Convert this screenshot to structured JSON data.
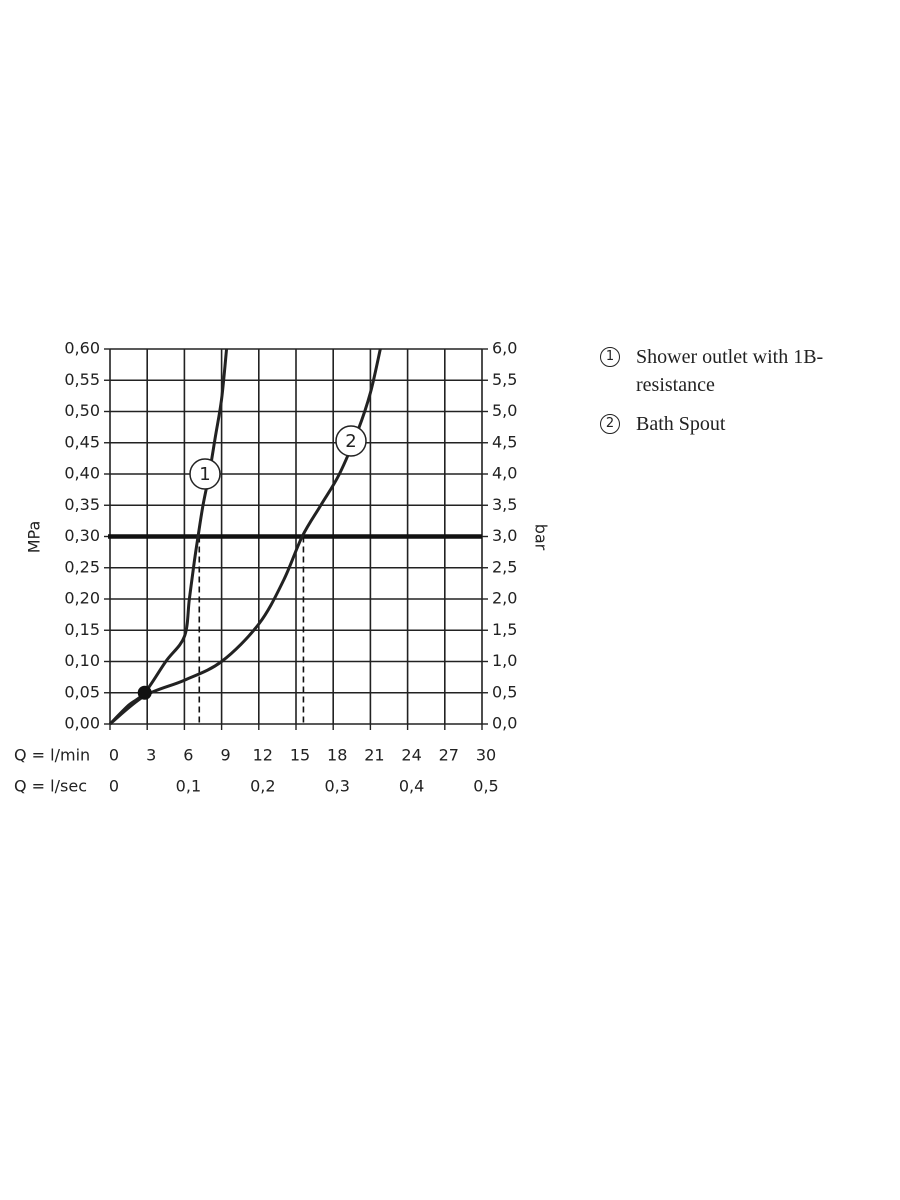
{
  "chart_data": {
    "type": "line",
    "ylabel": "MPa",
    "y2label": "bar",
    "xlabel": "Q = l/min",
    "x2label": "Q = l/sec",
    "xlim": [
      0,
      30
    ],
    "xticks": [
      0,
      3,
      6,
      9,
      12,
      15,
      18,
      21,
      24,
      27,
      30
    ],
    "x2lim": [
      0,
      0.5
    ],
    "x2ticks": [
      0,
      {
        "value": 0.1,
        "label": "0,1"
      },
      {
        "value": 0.2,
        "label": "0,2"
      },
      {
        "value": 0.3,
        "label": "0,3"
      },
      {
        "value": 0.4,
        "label": "0,4"
      },
      {
        "value": 0.5,
        "label": "0,5"
      }
    ],
    "ylim": [
      0,
      0.6
    ],
    "yticks": [
      {
        "value": 0,
        "label": "0,00"
      },
      {
        "value": 0.05,
        "label": "0,05"
      },
      {
        "value": 0.1,
        "label": "0,10"
      },
      {
        "value": 0.15,
        "label": "0,15"
      },
      {
        "value": 0.2,
        "label": "0,20"
      },
      {
        "value": 0.25,
        "label": "0,25"
      },
      {
        "value": 0.3,
        "label": "0,30"
      },
      {
        "value": 0.35,
        "label": "0,35"
      },
      {
        "value": 0.4,
        "label": "0,40"
      },
      {
        "value": 0.45,
        "label": "0,45"
      },
      {
        "value": 0.5,
        "label": "0,50"
      },
      {
        "value": 0.55,
        "label": "0,55"
      },
      {
        "value": 0.6,
        "label": "0,60"
      }
    ],
    "y2lim": [
      0,
      6
    ],
    "y2ticks": [
      {
        "value": 0,
        "label": "0,0"
      },
      {
        "value": 0.5,
        "label": "0,5"
      },
      {
        "value": 1,
        "label": "1,0"
      },
      {
        "value": 1.5,
        "label": "1,5"
      },
      {
        "value": 2,
        "label": "2,0"
      },
      {
        "value": 2.5,
        "label": "2,5"
      },
      {
        "value": 3,
        "label": "3,0"
      },
      {
        "value": 3.5,
        "label": "3,5"
      },
      {
        "value": 4,
        "label": "4,0"
      },
      {
        "value": 4.5,
        "label": "4,5"
      },
      {
        "value": 5,
        "label": "5,0"
      },
      {
        "value": 5.5,
        "label": "5,5"
      },
      {
        "value": 6,
        "label": "6,0"
      }
    ],
    "grid": true,
    "hline": 0.3,
    "drop_lines": [
      7.2,
      15.6
    ],
    "point": {
      "x": 2.8,
      "y": 0.05
    },
    "series": [
      {
        "name": "Shower outlet with 1B-resistance",
        "label": "1",
        "color": "#222222",
        "x": [
          0,
          1.5,
          2.8,
          4.5,
          6,
          6.4,
          6.8,
          7.1,
          7.5,
          8,
          8.5,
          9,
          9.4
        ],
        "values": [
          0,
          0.03,
          0.05,
          0.1,
          0.14,
          0.2,
          0.26,
          0.3,
          0.35,
          0.4,
          0.46,
          0.52,
          0.6
        ]
      },
      {
        "name": "Bath Spout",
        "label": "2",
        "color": "#222222",
        "x": [
          0,
          2.8,
          6,
          9,
          12,
          14,
          15.5,
          17,
          18.5,
          20,
          21,
          21.8
        ],
        "values": [
          0,
          0.045,
          0.07,
          0.1,
          0.16,
          0.23,
          0.3,
          0.35,
          0.4,
          0.47,
          0.53,
          0.6
        ]
      }
    ]
  }
}
